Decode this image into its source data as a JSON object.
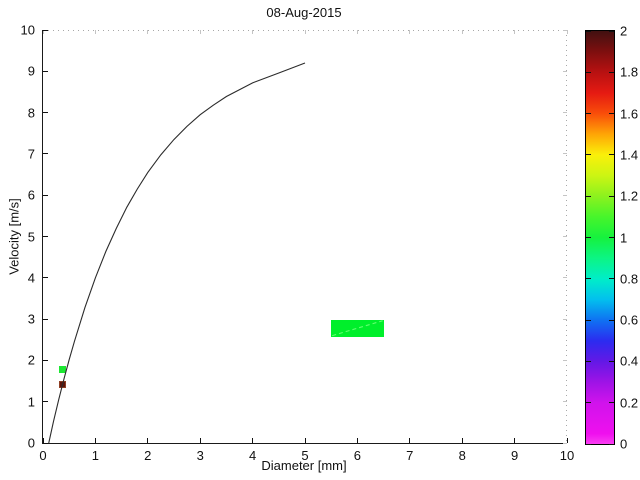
{
  "chart_data": {
    "type": "line",
    "title": "08-Aug-2015",
    "xlabel": "Diameter [mm]",
    "ylabel": "Velocity [m/s]",
    "xlim": [
      0,
      10
    ],
    "ylim": [
      0,
      10
    ],
    "xticks": [
      0,
      1,
      2,
      3,
      4,
      5,
      6,
      7,
      8,
      9,
      10
    ],
    "yticks": [
      0,
      1,
      2,
      3,
      4,
      5,
      6,
      7,
      8,
      9,
      10
    ],
    "xtick_labels": [
      "0",
      "1",
      "2",
      "3",
      "4",
      "5",
      "6",
      "7",
      "8",
      "9",
      "10"
    ],
    "ytick_labels": [
      "0",
      "1",
      "2",
      "3",
      "4",
      "5",
      "6",
      "7",
      "8",
      "9",
      "10"
    ],
    "grid": false,
    "series": [
      {
        "name": "terminal-velocity-curve",
        "color": "#2b2b2b",
        "dash": null,
        "x": [
          0.11,
          0.2,
          0.3,
          0.4,
          0.5,
          0.6,
          0.8,
          1.0,
          1.2,
          1.4,
          1.6,
          1.8,
          2.0,
          2.25,
          2.5,
          2.75,
          3.0,
          3.25,
          3.5,
          4.0,
          4.5,
          5.0
        ],
        "y": [
          0.0,
          0.52,
          1.05,
          1.55,
          2.02,
          2.46,
          3.28,
          4.0,
          4.64,
          5.2,
          5.71,
          6.15,
          6.55,
          6.98,
          7.35,
          7.67,
          7.95,
          8.18,
          8.39,
          8.72,
          8.96,
          9.2
        ]
      },
      {
        "name": "cell-edge-diagonal",
        "color": "#63ff70",
        "dash": "4 3",
        "x": [
          5.52,
          6.48
        ],
        "y": [
          2.6,
          2.96
        ]
      }
    ],
    "cells": [
      {
        "name": "bin-small-green",
        "d0": 0.31,
        "d1": 0.44,
        "v0": 1.7,
        "v1": 1.86,
        "value": 1.0,
        "color": "#1ce832",
        "border": null
      },
      {
        "name": "bin-small-darkred",
        "d0": 0.31,
        "d1": 0.44,
        "v0": 1.33,
        "v1": 1.5,
        "value": 2.0,
        "color": "#5c150d",
        "border": "#8f3f24"
      },
      {
        "name": "bin-large-green",
        "d0": 5.5,
        "d1": 6.5,
        "v0": 2.57,
        "v1": 2.98,
        "value": 1.0,
        "color": "#00ef2b",
        "border": null
      }
    ],
    "colorbar": {
      "min": 0,
      "max": 2,
      "ticks": [
        0,
        0.2,
        0.4,
        0.6,
        0.8,
        1,
        1.2,
        1.4,
        1.6,
        1.8,
        2
      ],
      "tick_labels": [
        "0",
        "0.2",
        "0.4",
        "0.6",
        "0.8",
        "1",
        "1.2",
        "1.4",
        "1.6",
        "1.8",
        "2"
      ],
      "stops": [
        [
          0.0,
          "#fa3df2"
        ],
        [
          0.05,
          "#ef10ee"
        ],
        [
          0.2,
          "#d013ec"
        ],
        [
          0.3,
          "#9e13e6"
        ],
        [
          0.4,
          "#6318e6"
        ],
        [
          0.5,
          "#2b2cf0"
        ],
        [
          0.6,
          "#0f72f2"
        ],
        [
          0.7,
          "#02c0ee"
        ],
        [
          0.8,
          "#00eec8"
        ],
        [
          0.9,
          "#0cf584"
        ],
        [
          1.0,
          "#16f23e"
        ],
        [
          1.1,
          "#47f52b"
        ],
        [
          1.2,
          "#8cf21e"
        ],
        [
          1.3,
          "#ccf513"
        ],
        [
          1.4,
          "#faf00a"
        ],
        [
          1.5,
          "#ffa506"
        ],
        [
          1.6,
          "#f94e0a"
        ],
        [
          1.7,
          "#e51a12"
        ],
        [
          1.8,
          "#b81111"
        ],
        [
          1.9,
          "#7e0f0f"
        ],
        [
          2.0,
          "#421010"
        ]
      ]
    }
  }
}
